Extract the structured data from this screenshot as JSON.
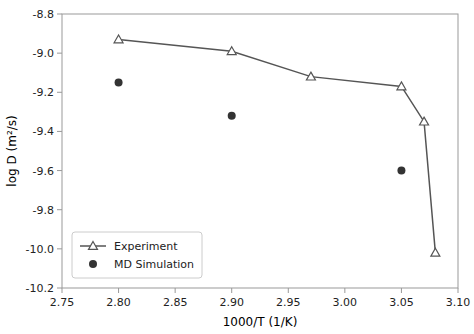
{
  "chart_data": {
    "type": "line",
    "xlabel": "1000/T (1/K)",
    "ylabel": "log D (m²/s)",
    "series": [
      {
        "name": "Experiment",
        "type": "line",
        "marker": "triangle",
        "color": "#555555",
        "x": [
          2.8,
          2.9,
          2.97,
          3.05,
          3.07,
          3.08
        ],
        "values": [
          -8.93,
          -8.99,
          -9.12,
          -9.17,
          -9.35,
          -10.02
        ]
      },
      {
        "name": "MD Simulation",
        "type": "scatter",
        "marker": "circle",
        "color": "#333333",
        "x": [
          2.8,
          2.9,
          3.05
        ],
        "values": [
          -9.15,
          -9.32,
          -9.6
        ]
      }
    ],
    "xlim": [
      2.75,
      3.1
    ],
    "ylim": [
      -10.2,
      -8.8
    ],
    "xticks": [
      2.75,
      {
        "value": 2.8,
        "label": "2.80"
      },
      2.85,
      {
        "value": 2.9,
        "label": "2.90"
      },
      2.95,
      {
        "value": 3.0,
        "label": "3.00"
      },
      3.05,
      {
        "value": 3.1,
        "label": "3.10"
      }
    ],
    "yticks": [
      -10.2,
      {
        "value": -10.0,
        "label": "-10.0"
      },
      -9.8,
      -9.6,
      -9.4,
      -9.2,
      {
        "value": -9.0,
        "label": "-9.0"
      },
      -8.8
    ],
    "grid": false,
    "legend": "lower left"
  }
}
